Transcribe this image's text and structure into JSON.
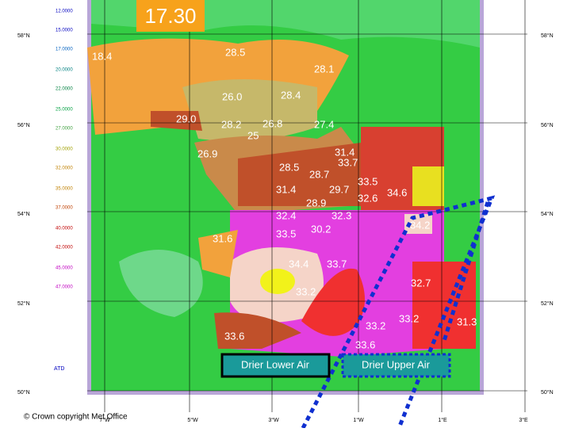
{
  "time": "17.30",
  "legend": [
    "12.0000",
    "15.0000",
    "17.0000",
    "20.0000",
    "22.0000",
    "25.0000",
    "27.0000",
    "30.0000",
    "32.0000",
    "35.0000",
    "37.0000",
    "40.0000",
    "42.0000",
    "45.0000",
    "47.0000"
  ],
  "latitudes": [
    "58°N",
    "56°N",
    "54°N",
    "52°N",
    "50°N"
  ],
  "longitudes": [
    "7°W",
    "5°W",
    "3°W",
    "1°W",
    "1°E",
    "3°E"
  ],
  "map_labels": [
    "18.4",
    "28.5",
    "28.1",
    "26.0",
    "28.4",
    "29.0",
    "28.2",
    "26.8",
    "27.4",
    "25",
    "26.9",
    "31.4",
    "33.7",
    "28.5",
    "28.7",
    "33.5",
    "31.4",
    "29.7",
    "32.6",
    "34.6",
    "28.9",
    "32.4",
    "32.3",
    "30.2",
    "33.5",
    "34.2",
    "31.6",
    "34.4",
    "33.7",
    "32.7",
    "33.2",
    "33.6",
    "33.2",
    "31.3",
    "33.2",
    "33.6"
  ],
  "annotations": {
    "lower": "Drier  Lower Air",
    "upper": "Drier  Upper Air",
    "atd": "ATD"
  },
  "credit": "© Crown copyright   Met Office"
}
